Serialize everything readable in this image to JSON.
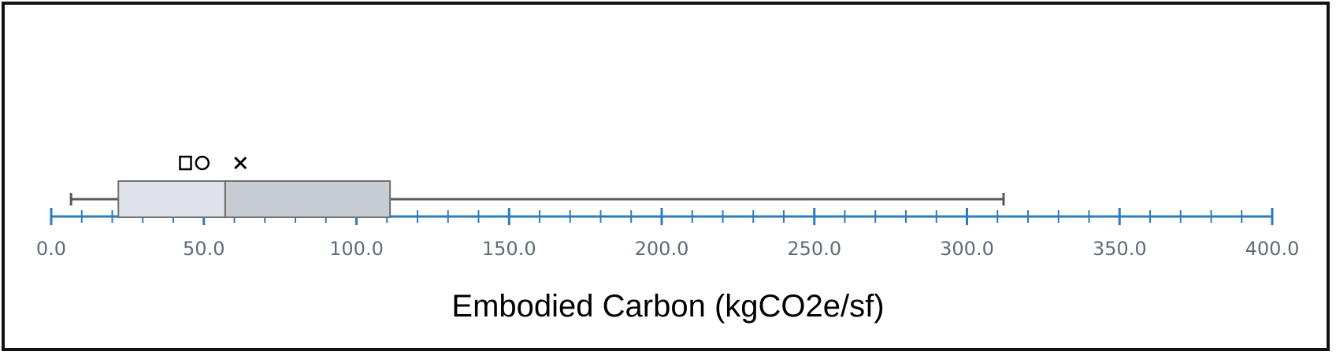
{
  "chart_data": {
    "type": "box",
    "orientation": "horizontal",
    "xlabel": "Embodied Carbon (kgCO2e/sf)",
    "xlim": [
      0,
      400
    ],
    "major_ticks": [
      0,
      50,
      100,
      150,
      200,
      250,
      300,
      350,
      400
    ],
    "tick_labels": [
      "0.0",
      "50.0",
      "100.0",
      "150.0",
      "200.0",
      "250.0",
      "300.0",
      "350.0",
      "400.0"
    ],
    "minor_tick_step": 10,
    "box": {
      "whisker_low": 6.5,
      "q1": 22,
      "median": 57,
      "q3": 111,
      "whisker_high": 312
    },
    "markers": [
      {
        "symbol": "square",
        "value": 44
      },
      {
        "symbol": "circle",
        "value": 49.5
      },
      {
        "symbol": "x",
        "value": 62
      }
    ],
    "colors": {
      "axis": "#2b7bbd",
      "whisker": "#595959",
      "box_left": "#dfe2e8",
      "box_right": "#c8ccd3",
      "box_border": "#707070",
      "tick_label": "#5f6b78"
    }
  }
}
